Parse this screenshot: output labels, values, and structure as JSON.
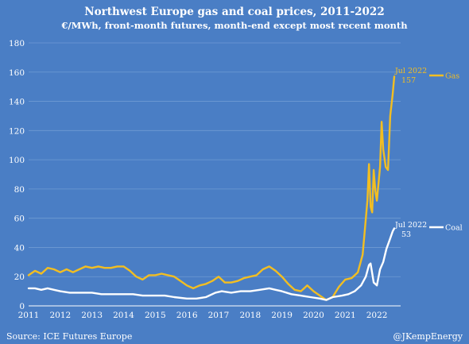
{
  "colors": {
    "background": "#4a7ec5",
    "gridline": "#6f9bd4",
    "gas": "#f2be22",
    "coal": "#ffffff",
    "text": "#ffffff"
  },
  "source": "Source:  ICE Futures Europe",
  "credit": "@JKempEnergy",
  "chart_data": {
    "type": "line",
    "title": "Northwest Europe gas and coal prices, 2011-2022",
    "subtitle": "€/MWh, front-month futures, month-end except most recent month",
    "xlabel": "",
    "ylabel": "",
    "xlim": [
      2011.0,
      2022.75
    ],
    "ylim": [
      0,
      180
    ],
    "y_ticks": [
      0,
      20,
      40,
      60,
      80,
      100,
      120,
      140,
      160,
      180
    ],
    "x_ticks": [
      "2011",
      "2012",
      "2013",
      "2014",
      "2015",
      "2016",
      "2017",
      "2018",
      "2019",
      "2020",
      "2021",
      "2022"
    ],
    "grid": "horizontal",
    "legend_position": "right",
    "series": [
      {
        "name": "Gas",
        "color": "#f2be22",
        "end_label": "Jul 2022",
        "end_value": "157",
        "points": [
          [
            2011.0,
            21
          ],
          [
            2011.2,
            24
          ],
          [
            2011.4,
            22
          ],
          [
            2011.6,
            26
          ],
          [
            2011.8,
            25
          ],
          [
            2012.0,
            23
          ],
          [
            2012.2,
            25
          ],
          [
            2012.4,
            23
          ],
          [
            2012.6,
            25
          ],
          [
            2012.8,
            27
          ],
          [
            2013.0,
            26
          ],
          [
            2013.2,
            27
          ],
          [
            2013.4,
            26
          ],
          [
            2013.6,
            26
          ],
          [
            2013.8,
            27
          ],
          [
            2014.0,
            27
          ],
          [
            2014.2,
            24
          ],
          [
            2014.4,
            20
          ],
          [
            2014.6,
            18
          ],
          [
            2014.8,
            21
          ],
          [
            2015.0,
            21
          ],
          [
            2015.2,
            22
          ],
          [
            2015.4,
            21
          ],
          [
            2015.6,
            20
          ],
          [
            2015.8,
            17
          ],
          [
            2016.0,
            14
          ],
          [
            2016.2,
            12
          ],
          [
            2016.4,
            14
          ],
          [
            2016.6,
            15
          ],
          [
            2016.8,
            17
          ],
          [
            2017.0,
            20
          ],
          [
            2017.2,
            16
          ],
          [
            2017.4,
            16
          ],
          [
            2017.6,
            17
          ],
          [
            2017.8,
            19
          ],
          [
            2018.0,
            20
          ],
          [
            2018.2,
            21
          ],
          [
            2018.4,
            25
          ],
          [
            2018.6,
            27
          ],
          [
            2018.8,
            24
          ],
          [
            2019.0,
            20
          ],
          [
            2019.2,
            15
          ],
          [
            2019.4,
            11
          ],
          [
            2019.6,
            10
          ],
          [
            2019.8,
            14
          ],
          [
            2020.0,
            10
          ],
          [
            2020.2,
            7
          ],
          [
            2020.4,
            4
          ],
          [
            2020.6,
            6
          ],
          [
            2020.8,
            13
          ],
          [
            2021.0,
            18
          ],
          [
            2021.2,
            19
          ],
          [
            2021.4,
            23
          ],
          [
            2021.55,
            35
          ],
          [
            2021.7,
            72
          ],
          [
            2021.75,
            97
          ],
          [
            2021.8,
            68
          ],
          [
            2021.85,
            64
          ],
          [
            2021.9,
            93
          ],
          [
            2021.95,
            79
          ],
          [
            2022.0,
            72
          ],
          [
            2022.1,
            95
          ],
          [
            2022.15,
            126
          ],
          [
            2022.2,
            107
          ],
          [
            2022.28,
            95
          ],
          [
            2022.35,
            93
          ],
          [
            2022.42,
            130
          ],
          [
            2022.5,
            145
          ],
          [
            2022.55,
            157
          ]
        ]
      },
      {
        "name": "Coal",
        "color": "#ffffff",
        "end_label": "Jul 2022",
        "end_value": "53",
        "points": [
          [
            2011.0,
            12
          ],
          [
            2011.2,
            12
          ],
          [
            2011.4,
            11
          ],
          [
            2011.6,
            12
          ],
          [
            2011.8,
            11
          ],
          [
            2012.0,
            10
          ],
          [
            2012.3,
            9
          ],
          [
            2012.6,
            9
          ],
          [
            2013.0,
            9
          ],
          [
            2013.3,
            8
          ],
          [
            2013.6,
            8
          ],
          [
            2014.0,
            8
          ],
          [
            2014.3,
            8
          ],
          [
            2014.6,
            7
          ],
          [
            2015.0,
            7
          ],
          [
            2015.3,
            7
          ],
          [
            2015.6,
            6
          ],
          [
            2016.0,
            5
          ],
          [
            2016.3,
            5
          ],
          [
            2016.6,
            6
          ],
          [
            2016.9,
            9
          ],
          [
            2017.1,
            10
          ],
          [
            2017.4,
            9
          ],
          [
            2017.7,
            10
          ],
          [
            2018.0,
            10
          ],
          [
            2018.3,
            11
          ],
          [
            2018.6,
            12
          ],
          [
            2018.8,
            11
          ],
          [
            2019.0,
            10
          ],
          [
            2019.3,
            8
          ],
          [
            2019.6,
            7
          ],
          [
            2019.9,
            6
          ],
          [
            2020.2,
            5
          ],
          [
            2020.4,
            4
          ],
          [
            2020.6,
            6
          ],
          [
            2020.9,
            7
          ],
          [
            2021.1,
            8
          ],
          [
            2021.3,
            10
          ],
          [
            2021.5,
            14
          ],
          [
            2021.65,
            20
          ],
          [
            2021.75,
            28
          ],
          [
            2021.8,
            29
          ],
          [
            2021.9,
            16
          ],
          [
            2022.0,
            14
          ],
          [
            2022.1,
            25
          ],
          [
            2022.2,
            30
          ],
          [
            2022.3,
            39
          ],
          [
            2022.4,
            45
          ],
          [
            2022.5,
            51
          ],
          [
            2022.55,
            53
          ]
        ]
      }
    ]
  }
}
